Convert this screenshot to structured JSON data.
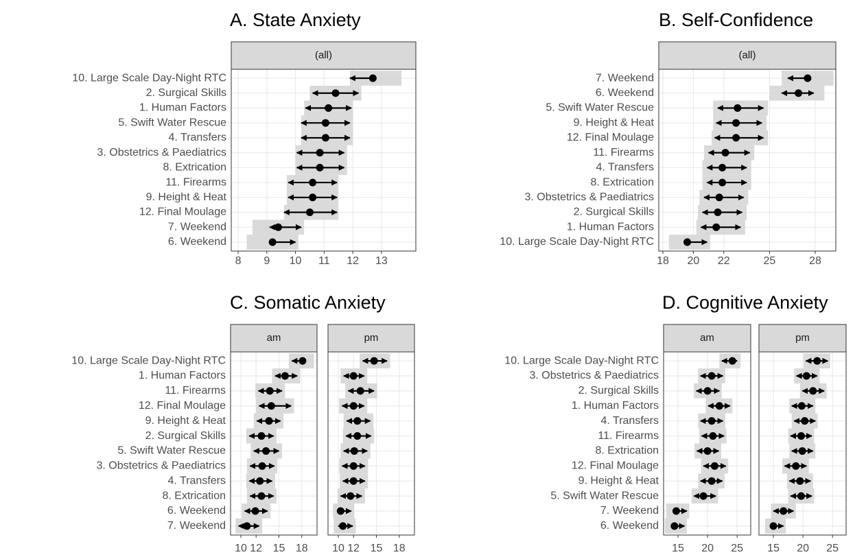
{
  "chart_data": [
    {
      "type": "dot",
      "title": "A. State Anxiety",
      "categories": [
        "10. Large Scale Day-Night RTC",
        "2. Surgical Skills",
        "1. Human Factors",
        "5. Swift Water Rescue",
        "4. Transfers",
        "3. Obstetrics & Paediatrics",
        "8. Extrication",
        "11. Firearms",
        "9. Height & Heat",
        "12. Final Moulage",
        "7. Weekend",
        "6. Weekend"
      ],
      "xlim": [
        7.76,
        14.2
      ],
      "xticks": [
        8,
        9,
        10,
        11,
        12,
        13
      ],
      "grid": true,
      "facets": [
        {
          "name": "(all)",
          "values": [
            12.7,
            11.4,
            11.15,
            11.05,
            11.05,
            10.85,
            10.85,
            10.6,
            10.6,
            10.5,
            9.4,
            9.2
          ],
          "lower": [
            11.9,
            10.6,
            10.35,
            10.2,
            10.2,
            10.05,
            10.05,
            9.75,
            9.75,
            9.6,
            9.1,
            9.2
          ],
          "upper": [
            12.7,
            12.2,
            11.95,
            11.9,
            11.9,
            11.7,
            11.7,
            11.45,
            11.45,
            11.45,
            10.2,
            10.0
          ],
          "band_lower": [
            11.9,
            10.5,
            10.3,
            10.2,
            10.2,
            10.0,
            10.0,
            9.7,
            9.7,
            9.6,
            8.5,
            8.3
          ],
          "band_upper": [
            13.7,
            12.3,
            12.0,
            12.0,
            12.0,
            11.8,
            11.8,
            11.5,
            11.5,
            11.5,
            10.3,
            10.1
          ]
        }
      ]
    },
    {
      "type": "dot",
      "title": "B. Self-Confidence",
      "categories": [
        "7. Weekend",
        "6. Weekend",
        "5. Swift Water Rescue",
        "9. Height & Heat",
        "12. Final Moulage",
        "11. Firearms",
        "4. Transfers",
        "8. Extrication",
        "3. Obstetrics & Paediatrics",
        "2. Surgical Skills",
        "1. Human Factors",
        "10. Large Scale Day-Night RTC"
      ],
      "xlim": [
        17.73,
        29.35
      ],
      "xticks": [
        18,
        20,
        22,
        25,
        28
      ],
      "grid": true,
      "facets": [
        {
          "name": "(all)",
          "values": [
            27.5,
            26.9,
            22.9,
            22.8,
            22.8,
            22.1,
            21.9,
            21.9,
            21.7,
            21.6,
            21.5,
            19.6
          ],
          "lower": [
            26.2,
            25.8,
            21.6,
            21.5,
            21.4,
            21.0,
            20.9,
            20.9,
            20.7,
            20.6,
            20.5,
            19.6
          ],
          "upper": [
            27.5,
            27.9,
            24.6,
            24.5,
            24.6,
            23.7,
            23.5,
            23.5,
            23.3,
            23.2,
            23.1,
            20.9
          ],
          "band_lower": [
            25.8,
            25.0,
            21.3,
            21.3,
            21.2,
            20.7,
            20.6,
            20.6,
            20.4,
            20.3,
            20.2,
            18.4
          ],
          "band_upper": [
            29.2,
            28.6,
            24.9,
            24.8,
            24.9,
            24.0,
            23.8,
            23.8,
            23.6,
            23.5,
            23.4,
            21.1
          ]
        }
      ]
    },
    {
      "type": "dot",
      "title": "C. Somatic Anxiety",
      "categories": [
        "10. Large Scale Day-Night RTC",
        "1. Human Factors",
        "11. Firearms",
        "12. Final Moulage",
        "9. Height & Heat",
        "2. Surgical Skills",
        "5. Swift Water Rescue",
        "3. Obstetrics & Paediatrics",
        "4. Transfers",
        "8. Extrication",
        "6. Weekend",
        "7. Weekend"
      ],
      "xlim": [
        8.65,
        20.0
      ],
      "xticks": [
        10,
        12,
        15,
        18
      ],
      "grid": true,
      "facets": [
        {
          "name": "am",
          "values": [
            18.1,
            15.8,
            13.8,
            14.0,
            13.7,
            12.7,
            13.3,
            12.8,
            12.5,
            12.7,
            11.9,
            10.8
          ],
          "lower": [
            16.7,
            14.5,
            12.3,
            12.4,
            12.1,
            11.1,
            11.7,
            11.2,
            11.1,
            11.2,
            10.5,
            9.7
          ],
          "upper": [
            18.1,
            17.4,
            15.4,
            16.6,
            15.2,
            14.3,
            15.0,
            14.4,
            14.1,
            14.3,
            13.5,
            12.4
          ],
          "band_lower": [
            16.3,
            14.1,
            11.9,
            12.0,
            11.7,
            10.7,
            11.3,
            10.8,
            10.7,
            10.8,
            10.1,
            9.3
          ],
          "band_upper": [
            19.6,
            17.8,
            15.8,
            17.0,
            15.6,
            14.7,
            15.4,
            14.8,
            14.5,
            14.7,
            13.9,
            12.8
          ]
        },
        {
          "name": "pm",
          "values": [
            14.7,
            12.0,
            12.9,
            12.0,
            12.5,
            12.5,
            12.1,
            12.0,
            12.0,
            11.6,
            10.3,
            10.6
          ],
          "lower": [
            13.2,
            10.7,
            11.3,
            10.5,
            11.1,
            11.0,
            10.7,
            10.5,
            10.6,
            10.3,
            10.3,
            10.0
          ],
          "upper": [
            16.4,
            13.4,
            14.7,
            13.4,
            14.2,
            14.3,
            13.8,
            13.5,
            13.5,
            13.1,
            11.7,
            11.9
          ],
          "band_lower": [
            12.8,
            10.3,
            10.9,
            10.1,
            10.7,
            10.6,
            10.3,
            10.1,
            10.2,
            9.9,
            9.3,
            9.4
          ],
          "band_upper": [
            16.8,
            13.8,
            15.1,
            13.8,
            14.6,
            14.7,
            14.2,
            13.9,
            13.9,
            13.5,
            12.1,
            12.3
          ]
        }
      ]
    },
    {
      "type": "dot",
      "title": "D. Cognitive Anxiety",
      "categories": [
        "10. Large Scale Day-Night RTC",
        "3. Obstetrics & Paediatrics",
        "2. Surgical Skills",
        "1. Human Factors",
        "4. Transfers",
        "11. Firearms",
        "8. Extrication",
        "12. Final Moulage",
        "9. Height & Heat",
        "5. Swift Water Rescue",
        "7. Weekend",
        "6. Weekend"
      ],
      "xlim": [
        12.56,
        27.3
      ],
      "xticks": [
        15,
        20,
        25
      ],
      "grid": true,
      "facets": [
        {
          "name": "am",
          "values": [
            24.2,
            20.7,
            20.0,
            22.0,
            20.7,
            20.9,
            20.0,
            21.2,
            20.7,
            19.3,
            14.7,
            14.4
          ],
          "lower": [
            22.4,
            18.8,
            18.1,
            20.1,
            18.8,
            19.0,
            18.2,
            19.3,
            18.8,
            17.7,
            14.7,
            14.4
          ],
          "upper": [
            25.0,
            22.6,
            22.0,
            23.8,
            22.6,
            22.8,
            21.9,
            23.1,
            22.5,
            21.4,
            16.5,
            16.1
          ],
          "band_lower": [
            22.0,
            18.4,
            17.7,
            19.7,
            18.4,
            18.6,
            17.8,
            18.9,
            18.4,
            17.3,
            13.0,
            12.8
          ],
          "band_upper": [
            25.6,
            23.0,
            22.4,
            24.2,
            23.0,
            23.2,
            22.3,
            23.5,
            22.9,
            21.8,
            16.9,
            16.5
          ]
        },
        {
          "name": "pm",
          "values": [
            22.4,
            20.6,
            21.7,
            19.8,
            20.3,
            19.7,
            19.9,
            18.8,
            19.5,
            19.7,
            16.7,
            15.0
          ],
          "lower": [
            20.5,
            18.9,
            19.9,
            18.1,
            18.5,
            17.9,
            18.1,
            16.9,
            17.7,
            17.9,
            15.0,
            15.0
          ],
          "upper": [
            24.2,
            22.4,
            23.6,
            21.7,
            22.1,
            21.5,
            21.7,
            20.6,
            21.3,
            21.5,
            18.4,
            16.7
          ],
          "band_lower": [
            20.1,
            18.5,
            19.5,
            17.7,
            18.1,
            17.5,
            17.7,
            16.5,
            17.3,
            17.5,
            14.6,
            13.6
          ],
          "band_upper": [
            24.6,
            22.8,
            24.0,
            22.1,
            22.5,
            21.9,
            22.1,
            21.0,
            21.7,
            21.9,
            18.8,
            17.1
          ]
        }
      ]
    }
  ]
}
